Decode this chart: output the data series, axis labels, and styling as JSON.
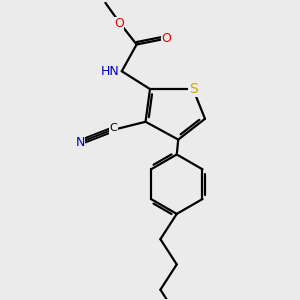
{
  "bg_color": "#ebebeb",
  "atom_colors": {
    "C": "#000000",
    "N": "#0000cc",
    "O": "#ee0000",
    "S": "#ccaa00",
    "H": "#808080"
  },
  "bond_color": "#000000",
  "bond_width": 1.6,
  "figsize": [
    3.0,
    3.0
  ],
  "dpi": 100,
  "xlim": [
    0,
    10
  ],
  "ylim": [
    0,
    10
  ]
}
